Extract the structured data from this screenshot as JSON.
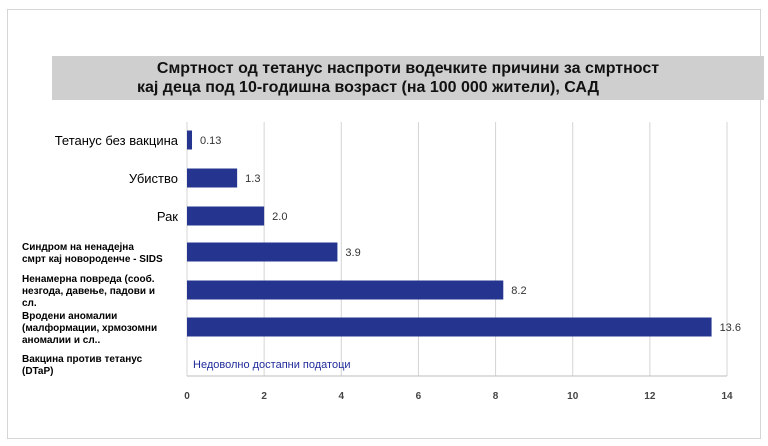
{
  "header": {
    "title_line1": "Смртност од тетанус наспроти водечките причини за смртност",
    "title_line2": "кај деца под 10-годишна возраст (на 100 000 жители), САД"
  },
  "chart_data": {
    "type": "bar",
    "orientation": "horizontal",
    "title": "Смртност од тетанус наспроти водечките причини за смртност кај деца под 10-годишна возраст (на 100 000 жители), САД",
    "categories": [
      [
        "Тетанус без вакцина"
      ],
      [
        "Убиство"
      ],
      [
        "Рак"
      ],
      [
        "Синдром на ненадејна",
        "смрт кај новороденче - SIDS"
      ],
      [
        "Ненамерна повреда (сооб.",
        "незгода, давење, падови и",
        "сл."
      ],
      [
        "Вродени аномалии",
        "(малформации, хрмозомни",
        "аномалии и сл.."
      ],
      [
        "Вакцина против тетанус",
        "(DTaP)"
      ]
    ],
    "values": [
      0.13,
      1.3,
      2.0,
      3.9,
      8.2,
      13.6,
      null
    ],
    "value_labels": [
      "0.13",
      "1.3",
      "2.0",
      "3.9",
      "8.2",
      "13.6",
      ""
    ],
    "na_text": "Недоволно достапни податоци",
    "xlim": [
      0,
      14
    ],
    "xticks": [
      "0",
      "2",
      "4",
      "6",
      "8",
      "10",
      "12",
      "14"
    ],
    "grid": true,
    "bar_color": "#25358f"
  }
}
